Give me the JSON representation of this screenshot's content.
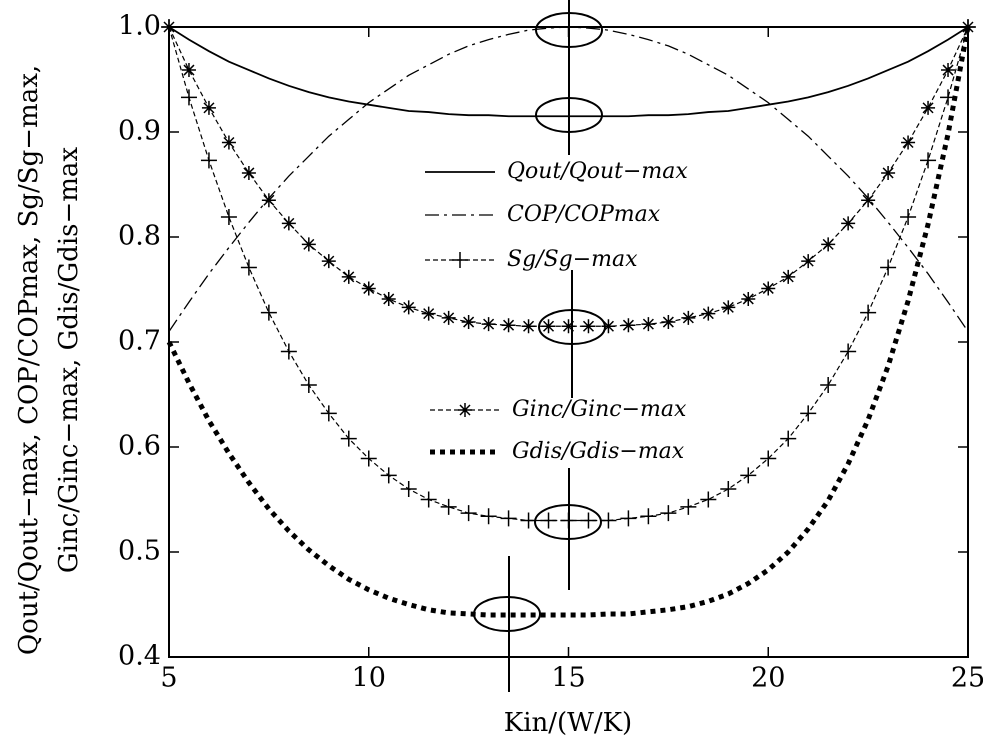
{
  "chart_data": {
    "type": "line",
    "xlabel": "Kin/(W/K)",
    "ylabel": [
      "Qout/Qout−max, COP/COPmax, Sg/Sg−max,",
      "Ginc/Ginc−max, Gdis/Gdis−max"
    ],
    "x": [
      5,
      5.5,
      6,
      6.5,
      7,
      7.5,
      8,
      8.5,
      9,
      9.5,
      10,
      10.5,
      11,
      11.5,
      12,
      12.5,
      13,
      13.5,
      14,
      14.5,
      15,
      15.5,
      16,
      16.5,
      17,
      17.5,
      18,
      18.5,
      19,
      19.5,
      20,
      20.5,
      21,
      21.5,
      22,
      22.5,
      23,
      23.5,
      24,
      24.5,
      25
    ],
    "xlim": [
      5,
      25
    ],
    "xticks": [
      5,
      10,
      15,
      20,
      25
    ],
    "ylim": [
      0.4,
      1
    ],
    "yticks": [
      0.4,
      0.5,
      0.6,
      0.7,
      0.8,
      0.9,
      {
        "value": 1,
        "label": "1.0"
      }
    ],
    "series": [
      {
        "name": "Qout/Qout−max",
        "color": "#000000",
        "linestyle": "solid",
        "values": [
          1,
          0.988,
          0.977,
          0.967,
          0.959,
          0.951,
          0.944,
          0.938,
          0.933,
          0.929,
          0.926,
          0.923,
          0.92,
          0.919,
          0.917,
          0.916,
          0.916,
          0.915,
          0.915,
          0.915,
          0.915,
          0.915,
          0.915,
          0.915,
          0.916,
          0.916,
          0.917,
          0.919,
          0.92,
          0.923,
          0.926,
          0.929,
          0.933,
          0.938,
          0.944,
          0.951,
          0.959,
          0.967,
          0.977,
          0.988,
          1
        ]
      },
      {
        "name": "COP/COPmax",
        "color": "#000000",
        "linestyle": "dashdot",
        "values": [
          0.71,
          0.738,
          0.765,
          0.79,
          0.814,
          0.837,
          0.858,
          0.877,
          0.896,
          0.912,
          0.928,
          0.941,
          0.954,
          0.964,
          0.974,
          0.982,
          0.988,
          0.993,
          0.997,
          0.999,
          1,
          0.999,
          0.997,
          0.993,
          0.988,
          0.982,
          0.974,
          0.964,
          0.954,
          0.941,
          0.928,
          0.912,
          0.896,
          0.877,
          0.858,
          0.837,
          0.814,
          0.79,
          0.765,
          0.738,
          0.71
        ]
      },
      {
        "name": "Sg/Sg−max",
        "color": "#000000",
        "linestyle": "dashed",
        "marker": "plus",
        "values": [
          1,
          0.933,
          0.873,
          0.819,
          0.771,
          0.728,
          0.691,
          0.659,
          0.632,
          0.608,
          0.589,
          0.573,
          0.56,
          0.55,
          0.543,
          0.537,
          0.534,
          0.532,
          0.53,
          0.53,
          0.53,
          0.53,
          0.53,
          0.532,
          0.534,
          0.537,
          0.543,
          0.55,
          0.56,
          0.573,
          0.589,
          0.608,
          0.632,
          0.659,
          0.691,
          0.728,
          0.771,
          0.819,
          0.873,
          0.933,
          1
        ]
      },
      {
        "name": "Ginc/Ginc−max",
        "color": "#000000",
        "linestyle": "dashed",
        "marker": "star",
        "values": [
          1,
          0.959,
          0.923,
          0.89,
          0.861,
          0.835,
          0.813,
          0.793,
          0.777,
          0.762,
          0.751,
          0.741,
          0.733,
          0.727,
          0.723,
          0.719,
          0.717,
          0.716,
          0.715,
          0.715,
          0.715,
          0.715,
          0.715,
          0.716,
          0.717,
          0.719,
          0.723,
          0.727,
          0.733,
          0.741,
          0.751,
          0.762,
          0.777,
          0.793,
          0.813,
          0.835,
          0.861,
          0.89,
          0.923,
          0.959,
          1
        ]
      },
      {
        "name": "Gdis/Gdis−max",
        "color": "#000000",
        "linestyle": "dotted",
        "values": [
          0.7,
          0.661,
          0.625,
          0.594,
          0.566,
          0.541,
          0.52,
          0.502,
          0.487,
          0.474,
          0.464,
          0.456,
          0.45,
          0.445,
          0.442,
          0.441,
          0.44,
          0.44,
          0.44,
          0.44,
          0.44,
          0.44,
          0.441,
          0.441,
          0.443,
          0.445,
          0.448,
          0.453,
          0.46,
          0.47,
          0.483,
          0.5,
          0.522,
          0.549,
          0.584,
          0.626,
          0.677,
          0.739,
          0.812,
          0.898,
          1
        ]
      }
    ]
  }
}
